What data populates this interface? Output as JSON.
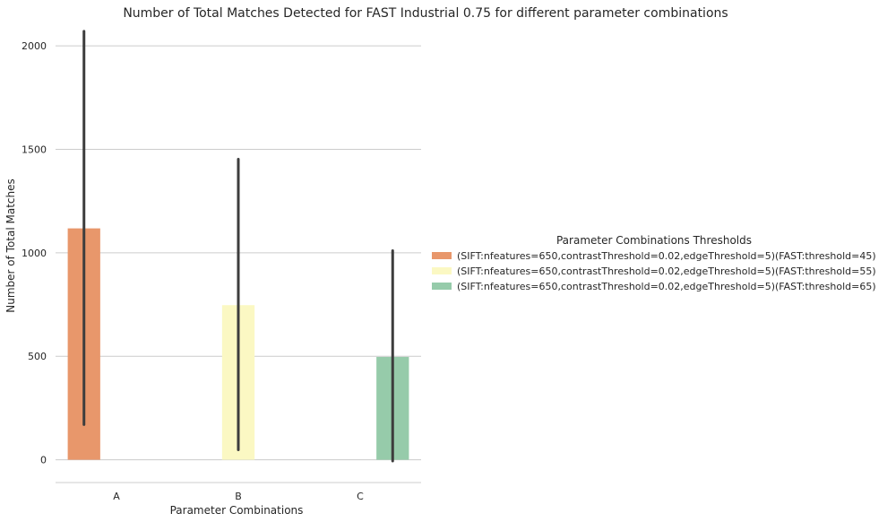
{
  "chart_data": {
    "type": "bar",
    "title": "Number of Total Matches Detected for FAST Industrial 0.75 for different parameter combinations",
    "xlabel": "Parameter Combinations",
    "ylabel": "Number of Total Matches",
    "categories": [
      "A",
      "B",
      "C"
    ],
    "ylim": [
      -110,
      2100
    ],
    "yticks": [
      0,
      500,
      1000,
      1500,
      2000
    ],
    "grid": "horizontal",
    "legend": {
      "title": "Parameter Combinations Thresholds",
      "placement": "center-right"
    },
    "series": [
      {
        "name": "(SIFT:nfeatures=650,contrastThreshold=0.02,edgeThreshold=5)(FAST:threshold=45)",
        "color": "#e8976b",
        "values": [
          1118,
          null,
          null
        ],
        "error_low": [
          170,
          null,
          null
        ],
        "error_high": [
          2070,
          null,
          null
        ]
      },
      {
        "name": "(SIFT:nfeatures=650,contrastThreshold=0.02,edgeThreshold=5)(FAST:threshold=55)",
        "color": "#fbf8c3",
        "values": [
          null,
          747,
          null
        ],
        "error_low": [
          null,
          48,
          null
        ],
        "error_high": [
          null,
          1452,
          null
        ]
      },
      {
        "name": "(SIFT:nfeatures=650,contrastThreshold=0.02,edgeThreshold=5)(FAST:threshold=65)",
        "color": "#96cbaa",
        "values": [
          null,
          null,
          497
        ],
        "error_low": [
          null,
          null,
          -6
        ],
        "error_high": [
          null,
          null,
          1010
        ]
      }
    ]
  }
}
